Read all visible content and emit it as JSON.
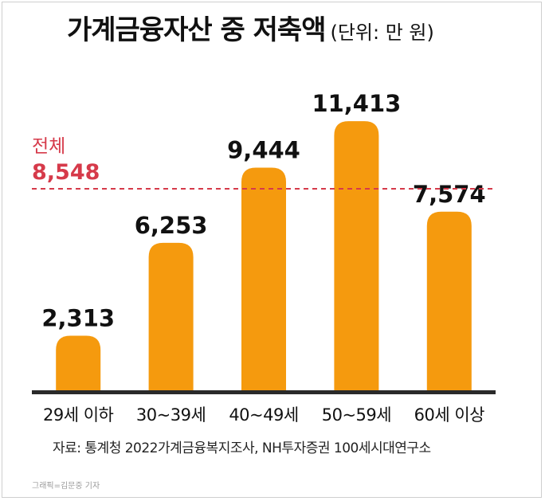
{
  "chart_data": {
    "type": "bar",
    "title": "가계금융자산 중 저축액",
    "unit_label": "(단위: 만 원)",
    "categories": [
      "29세 이하",
      "30~39세",
      "40~49세",
      "50~59세",
      "60세 이상"
    ],
    "values": [
      2313,
      6253,
      9444,
      11413,
      7574
    ],
    "value_labels": [
      "2,313",
      "6,253",
      "9,444",
      "11,413",
      "7,574"
    ],
    "reference_line": {
      "label": "전체",
      "value": 8548,
      "value_label": "8,548"
    },
    "colors": {
      "bar": "#F59A0E",
      "reference": "#D63A4A",
      "axis": "#2a2a2a",
      "text": "#111111"
    },
    "ylim": [
      0,
      12500
    ],
    "legend": "none",
    "grid": false
  },
  "source": "자료: 통계청 2022가계금융복지조사, NH투자증권 100세시대연구소",
  "credit": "그래픽=김문중 기자"
}
